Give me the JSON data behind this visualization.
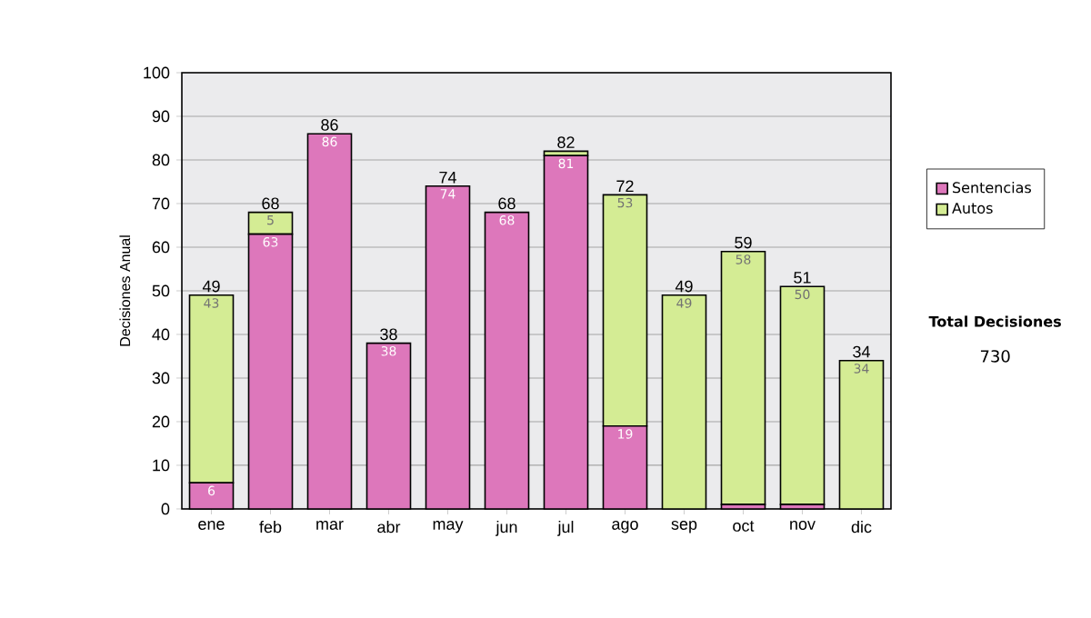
{
  "chart_data": {
    "type": "bar",
    "stacked": true,
    "ylabel": "Decisiones Anual",
    "categories": [
      "ene",
      "feb",
      "mar",
      "abr",
      "may",
      "jun",
      "jul",
      "ago",
      "sep",
      "oct",
      "nov",
      "dic"
    ],
    "series": [
      {
        "name": "Sentencias",
        "color": "#dd77bb",
        "values": [
          6,
          63,
          86,
          38,
          74,
          68,
          81,
          19,
          0,
          1,
          1,
          0
        ],
        "value_labels": [
          "6",
          "63",
          "86",
          "38",
          "74",
          "68",
          "81",
          "19",
          null,
          null,
          null,
          null
        ]
      },
      {
        "name": "Autos",
        "color": "#d4ec94",
        "values": [
          43,
          5,
          0,
          0,
          0,
          0,
          1,
          53,
          49,
          58,
          50,
          34
        ],
        "value_labels": [
          "43",
          "5",
          null,
          null,
          null,
          null,
          null,
          "53",
          "49",
          "58",
          "50",
          "34"
        ]
      }
    ],
    "totals": [
      "49",
      "68",
      "86",
      "38",
      "74",
      "68",
      "82",
      "72",
      "49",
      "59",
      "51",
      "34"
    ],
    "ylim": [
      0,
      100
    ],
    "yticks": [
      0,
      10,
      20,
      30,
      40,
      50,
      60,
      70,
      80,
      90,
      100
    ],
    "grid": "y",
    "legend": "right",
    "annotations": [
      "Total Decisiones",
      "730"
    ]
  }
}
